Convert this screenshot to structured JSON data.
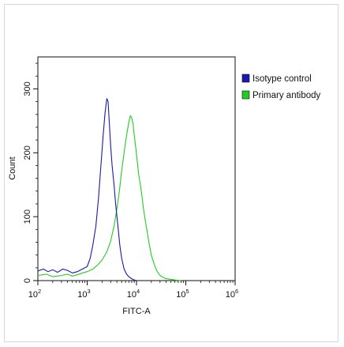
{
  "chart_data": {
    "type": "area",
    "title": "",
    "xlabel": "FITC-A",
    "ylabel": "Count",
    "xscale": "log",
    "xlim": [
      100,
      1000000
    ],
    "ylim": [
      0,
      350
    ],
    "grid": false,
    "legend_position": "top-right",
    "x_ticks": [
      {
        "value": 100,
        "base": "10",
        "exp": "2"
      },
      {
        "value": 1000,
        "base": "10",
        "exp": "3"
      },
      {
        "value": 10000,
        "base": "10",
        "exp": "4"
      },
      {
        "value": 100000,
        "base": "10",
        "exp": "5"
      },
      {
        "value": 1000000,
        "base": "10",
        "exp": "6"
      }
    ],
    "y_ticks": [
      0,
      100,
      200,
      300
    ],
    "series": [
      {
        "name": "Isotype control",
        "color": "#1a1aaa",
        "x": [
          100,
          130,
          160,
          200,
          250,
          320,
          400,
          500,
          630,
          800,
          1000,
          1150,
          1300,
          1500,
          1700,
          1900,
          2100,
          2300,
          2500,
          2650,
          2800,
          3000,
          3200,
          3500,
          3800,
          4200,
          4600,
          5000,
          5600,
          6300,
          7000,
          8000,
          9000,
          10000
        ],
        "y": [
          15,
          18,
          14,
          17,
          13,
          18,
          16,
          12,
          14,
          18,
          22,
          35,
          55,
          85,
          130,
          180,
          225,
          262,
          285,
          280,
          250,
          210,
          180,
          150,
          118,
          85,
          55,
          35,
          18,
          10,
          6,
          3,
          1,
          0
        ]
      },
      {
        "name": "Primary antibody",
        "color": "#22cc22",
        "x": [
          100,
          150,
          200,
          300,
          400,
          500,
          630,
          800,
          1000,
          1300,
          1600,
          2000,
          2500,
          3000,
          3500,
          4000,
          4500,
          5000,
          5600,
          6300,
          7000,
          7500,
          8000,
          8500,
          9000,
          10000,
          11000,
          12500,
          14000,
          16000,
          18000,
          20000,
          23000,
          26000,
          30000,
          35000,
          40000,
          50000,
          60000,
          80000
        ],
        "y": [
          8,
          10,
          6,
          8,
          10,
          7,
          9,
          12,
          14,
          18,
          24,
          32,
          45,
          62,
          85,
          112,
          140,
          172,
          200,
          228,
          248,
          258,
          255,
          245,
          228,
          198,
          168,
          140,
          110,
          82,
          58,
          40,
          25,
          15,
          8,
          5,
          3,
          2,
          1,
          0
        ]
      }
    ]
  }
}
